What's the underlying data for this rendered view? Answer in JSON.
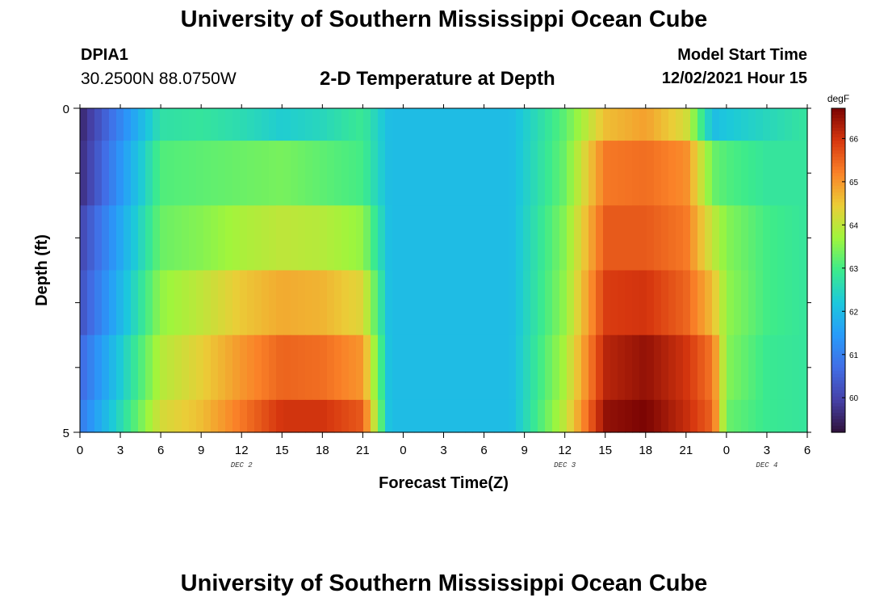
{
  "header": {
    "title": "University of Southern Mississippi Ocean Cube",
    "station_id": "DPIA1",
    "coordinates": "30.2500N  88.0750W",
    "model_start_label": "Model Start Time",
    "model_start_value": "12/02/2021 Hour 15"
  },
  "footer": {
    "title": "University of Southern Mississippi Ocean Cube"
  },
  "chart_data": {
    "type": "heatmap",
    "title": "2-D Temperature at Depth",
    "xlabel": "Forecast Time(Z)",
    "ylabel": "Depth (ft)",
    "x_ticks": [
      "0",
      "3",
      "6",
      "9",
      "12",
      "15",
      "18",
      "21",
      "0",
      "3",
      "6",
      "9",
      "12",
      "15",
      "18",
      "21",
      "0",
      "3",
      "6"
    ],
    "date_labels": [
      {
        "label": "DEC 2",
        "at_hour": 12
      },
      {
        "label": "DEC 3",
        "at_hour": 36
      },
      {
        "label": "DEC 4",
        "at_hour": 51
      }
    ],
    "y_ticks": [
      "0",
      "5"
    ],
    "ylim": [
      0,
      5
    ],
    "x_range_hours": [
      0,
      54
    ],
    "colorbar": {
      "unit": "degF",
      "range": [
        59.2,
        66.7
      ],
      "ticks": [
        "60",
        "61",
        "62",
        "63",
        "64",
        "65",
        "66"
      ]
    },
    "x_hours": [
      0,
      6,
      9,
      12,
      15,
      18,
      21,
      23,
      27,
      32,
      36,
      39,
      42,
      45,
      47,
      48,
      51,
      54
    ],
    "depth_layers": [
      {
        "depth_ft": 0.5,
        "temps_degF": [
          59.5,
          62.7,
          62.8,
          62.6,
          62.3,
          62.5,
          62.9,
          62.0,
          62.0,
          62.0,
          63.2,
          64.6,
          64.9,
          64.2,
          62.0,
          62.2,
          62.5,
          62.8
        ]
      },
      {
        "depth_ft": 1.5,
        "temps_degF": [
          59.6,
          63.1,
          63.2,
          63.3,
          63.4,
          63.2,
          63.0,
          62.0,
          62.0,
          62.0,
          63.3,
          65.3,
          65.4,
          65.1,
          63.3,
          63.1,
          62.8,
          62.8
        ]
      },
      {
        "depth_ft": 2.5,
        "temps_degF": [
          60.0,
          63.3,
          63.5,
          63.8,
          64.0,
          63.9,
          63.6,
          62.0,
          62.0,
          62.0,
          63.5,
          65.6,
          65.6,
          65.3,
          64.0,
          63.5,
          63.0,
          62.8
        ]
      },
      {
        "depth_ft": 3.5,
        "temps_degF": [
          60.2,
          63.6,
          64.0,
          64.5,
          64.8,
          64.7,
          64.3,
          62.0,
          62.0,
          62.0,
          63.6,
          65.9,
          66.0,
          65.5,
          64.6,
          63.6,
          63.0,
          62.8
        ]
      },
      {
        "depth_ft": 4.5,
        "temps_degF": [
          60.6,
          63.9,
          64.4,
          65.0,
          65.5,
          65.4,
          65.0,
          62.0,
          62.0,
          62.0,
          63.8,
          66.2,
          66.5,
          66.0,
          65.3,
          63.5,
          62.9,
          62.8
        ]
      },
      {
        "depth_ft": 5.0,
        "temps_degF": [
          60.9,
          64.2,
          64.6,
          65.3,
          66.0,
          66.0,
          65.6,
          62.0,
          62.0,
          62.0,
          64.0,
          66.5,
          66.7,
          66.1,
          65.5,
          63.3,
          62.9,
          62.8
        ]
      }
    ]
  }
}
